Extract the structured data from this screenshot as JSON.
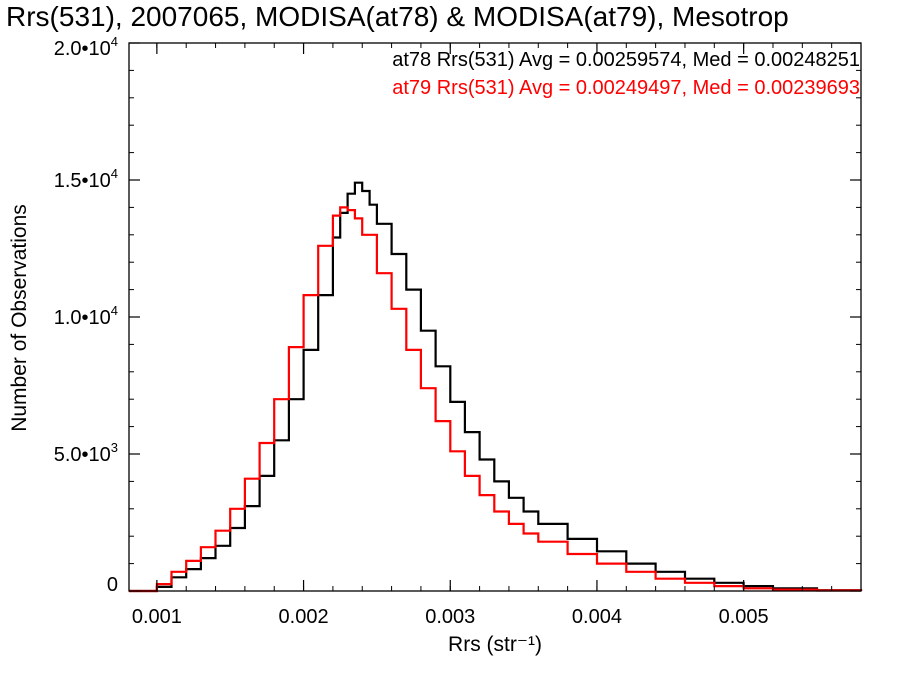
{
  "chart_data": {
    "type": "line",
    "title": "Rrs(531), 2007065, MODISA(at78) & MODISA(at79), Mesotrop",
    "xlabel": "Rrs (str⁻¹)",
    "ylabel": "Number of Observations",
    "xlim": [
      0.00081,
      0.0058
    ],
    "ylim": [
      0,
      20000
    ],
    "x_ticks": [
      {
        "value": 0.001,
        "label": "0.001"
      },
      {
        "value": 0.002,
        "label": "0.002"
      },
      {
        "value": 0.003,
        "label": "0.003"
      },
      {
        "value": 0.004,
        "label": "0.004"
      },
      {
        "value": 0.005,
        "label": "0.005"
      }
    ],
    "y_ticks": [
      {
        "value": 0,
        "mant": "0",
        "exp": ""
      },
      {
        "value": 5000,
        "mant": "5.0•10",
        "exp": "3"
      },
      {
        "value": 10000,
        "mant": "1.0•10",
        "exp": "4"
      },
      {
        "value": 15000,
        "mant": "1.5•10",
        "exp": "4"
      },
      {
        "value": 20000,
        "mant": "2.0•10",
        "exp": "4"
      }
    ],
    "series": [
      {
        "name": "at78",
        "color": "#000000",
        "stats_text": "at78 Rrs(531) Avg = 0.00259574, Med = 0.00248251",
        "x": [
          0.00081,
          0.0009,
          0.001,
          0.0011,
          0.0012,
          0.0013,
          0.0014,
          0.0015,
          0.0016,
          0.0017,
          0.0018,
          0.0019,
          0.002,
          0.0021,
          0.0022,
          0.00225,
          0.0023,
          0.00235,
          0.0024,
          0.00245,
          0.0025,
          0.0026,
          0.0027,
          0.0028,
          0.0029,
          0.003,
          0.0031,
          0.0032,
          0.0033,
          0.0034,
          0.0035,
          0.0036,
          0.0038,
          0.004,
          0.0042,
          0.0044,
          0.0046,
          0.0048,
          0.005,
          0.0052,
          0.0055,
          0.0058
        ],
        "y": [
          0,
          0,
          150,
          500,
          800,
          1200,
          1650,
          2300,
          3100,
          4200,
          5500,
          7000,
          8800,
          10800,
          12900,
          13800,
          14500,
          14900,
          14600,
          14100,
          13400,
          12300,
          11000,
          9500,
          8200,
          6900,
          5800,
          4800,
          4000,
          3400,
          2900,
          2450,
          1900,
          1450,
          1000,
          700,
          450,
          300,
          180,
          100,
          30,
          0
        ]
      },
      {
        "name": "at79",
        "color": "#ff0000",
        "stats_text": "at79 Rrs(531) Avg = 0.00249497, Med = 0.00239693",
        "x": [
          0.00081,
          0.0009,
          0.001,
          0.0011,
          0.0012,
          0.0013,
          0.0014,
          0.0015,
          0.0016,
          0.0017,
          0.0018,
          0.0019,
          0.002,
          0.0021,
          0.0022,
          0.00225,
          0.0023,
          0.00235,
          0.0024,
          0.0025,
          0.0026,
          0.0027,
          0.0028,
          0.0029,
          0.003,
          0.0031,
          0.0032,
          0.0033,
          0.0034,
          0.0035,
          0.0036,
          0.0038,
          0.004,
          0.0042,
          0.0044,
          0.0046,
          0.0048,
          0.005,
          0.0052,
          0.0055,
          0.0058
        ],
        "y": [
          0,
          0,
          250,
          700,
          1100,
          1600,
          2200,
          3000,
          4100,
          5400,
          7000,
          8900,
          10800,
          12600,
          13700,
          14000,
          13900,
          13600,
          13000,
          11600,
          10300,
          8800,
          7400,
          6200,
          5100,
          4200,
          3500,
          2900,
          2450,
          2100,
          1800,
          1350,
          1000,
          700,
          450,
          300,
          180,
          100,
          50,
          20,
          0
        ]
      }
    ]
  }
}
